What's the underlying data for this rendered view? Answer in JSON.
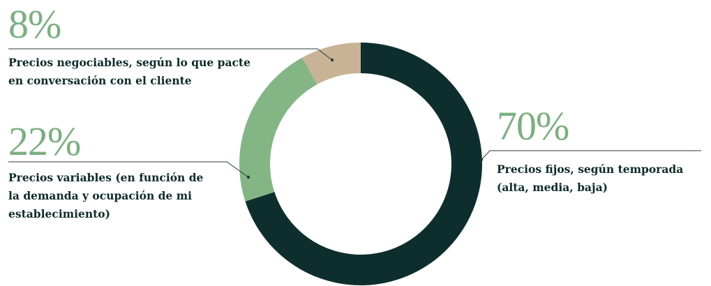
{
  "chart_data": {
    "type": "pie",
    "variant": "donut",
    "direction": "clockwise",
    "slices": [
      {
        "value": 70,
        "percent_label": "70%",
        "label_lines": [
          "Precios fijos, según temporada",
          "(alta, media, baja)"
        ],
        "color": "#0d2e2d"
      },
      {
        "value": 22,
        "percent_label": "22%",
        "label_lines": [
          "Precios variables (en función de",
          "la demanda y ocupación de mi",
          "establecimiento)"
        ],
        "color": "#84b585"
      },
      {
        "value": 8,
        "percent_label": "8%",
        "label_lines": [
          "Precios negociables, según lo que pacte",
          "en conversación con el cliente"
        ],
        "color": "#c8b396"
      }
    ]
  }
}
